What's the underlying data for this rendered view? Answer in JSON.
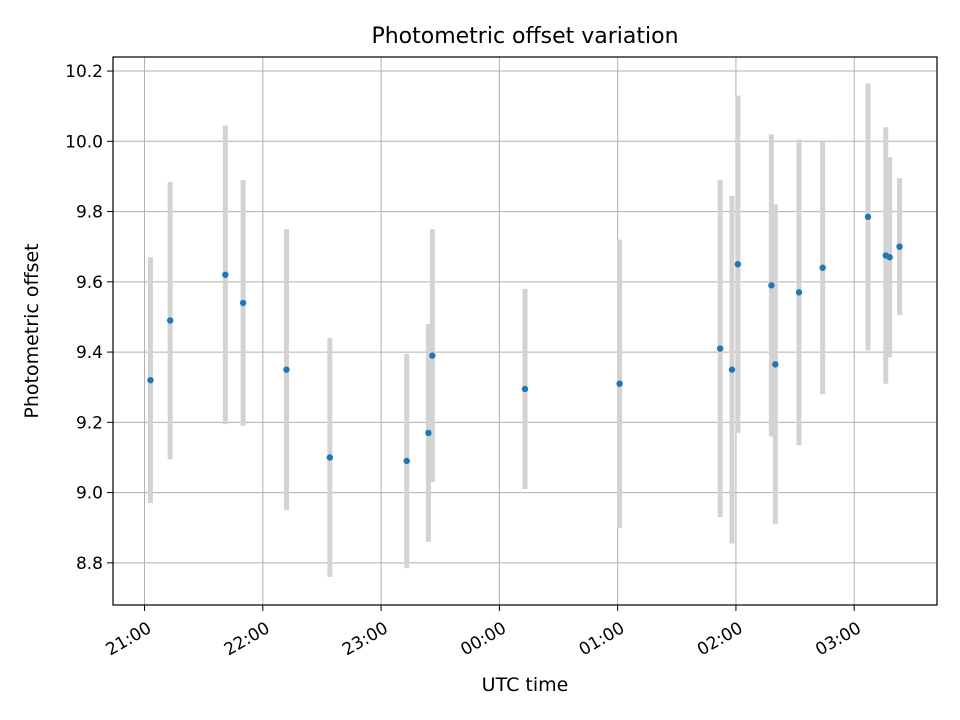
{
  "chart_data": {
    "type": "scatter",
    "title": "Photometric offset variation",
    "xlabel": "UTC time",
    "ylabel": "Photometric offset",
    "x_tick_labels": [
      "21:00",
      "22:00",
      "23:00",
      "00:00",
      "01:00",
      "02:00",
      "03:00"
    ],
    "y_tick_labels": [
      "8.8",
      "9.0",
      "9.2",
      "9.4",
      "9.6",
      "9.8",
      "10.0",
      "10.2"
    ],
    "y_ticks": [
      8.8,
      9.0,
      9.2,
      9.4,
      9.6,
      9.8,
      10.0,
      10.2
    ],
    "xlim": [
      "20:44",
      "03:42"
    ],
    "ylim": [
      8.68,
      10.24
    ],
    "grid": true,
    "marker_color": "#1f77b4",
    "errorbar_color": "#d3d3d3",
    "points": [
      {
        "x": "21:03",
        "y": 9.32,
        "err": 0.35
      },
      {
        "x": "21:13",
        "y": 9.49,
        "err": 0.395
      },
      {
        "x": "21:41",
        "y": 9.62,
        "err": 0.425
      },
      {
        "x": "21:50",
        "y": 9.54,
        "err": 0.35
      },
      {
        "x": "22:12",
        "y": 9.35,
        "err": 0.4
      },
      {
        "x": "22:34",
        "y": 9.1,
        "err": 0.34
      },
      {
        "x": "23:13",
        "y": 9.09,
        "err": 0.305
      },
      {
        "x": "23:24",
        "y": 9.17,
        "err": 0.31
      },
      {
        "x": "23:26",
        "y": 9.39,
        "err": 0.36
      },
      {
        "x": "00:13",
        "y": 9.295,
        "err": 0.285
      },
      {
        "x": "01:01",
        "y": 9.31,
        "err": 0.41
      },
      {
        "x": "01:52",
        "y": 9.41,
        "err": 0.48
      },
      {
        "x": "01:58",
        "y": 9.35,
        "err": 0.495
      },
      {
        "x": "02:01",
        "y": 9.65,
        "err": 0.48
      },
      {
        "x": "02:18",
        "y": 9.59,
        "err": 0.43
      },
      {
        "x": "02:20",
        "y": 9.365,
        "err": 0.455
      },
      {
        "x": "02:32",
        "y": 9.57,
        "err": 0.435
      },
      {
        "x": "02:44",
        "y": 9.64,
        "err": 0.36
      },
      {
        "x": "03:07",
        "y": 9.785,
        "err": 0.38
      },
      {
        "x": "03:16",
        "y": 9.675,
        "err": 0.365
      },
      {
        "x": "03:18",
        "y": 9.67,
        "err": 0.285
      },
      {
        "x": "03:23",
        "y": 9.7,
        "err": 0.195
      }
    ]
  }
}
